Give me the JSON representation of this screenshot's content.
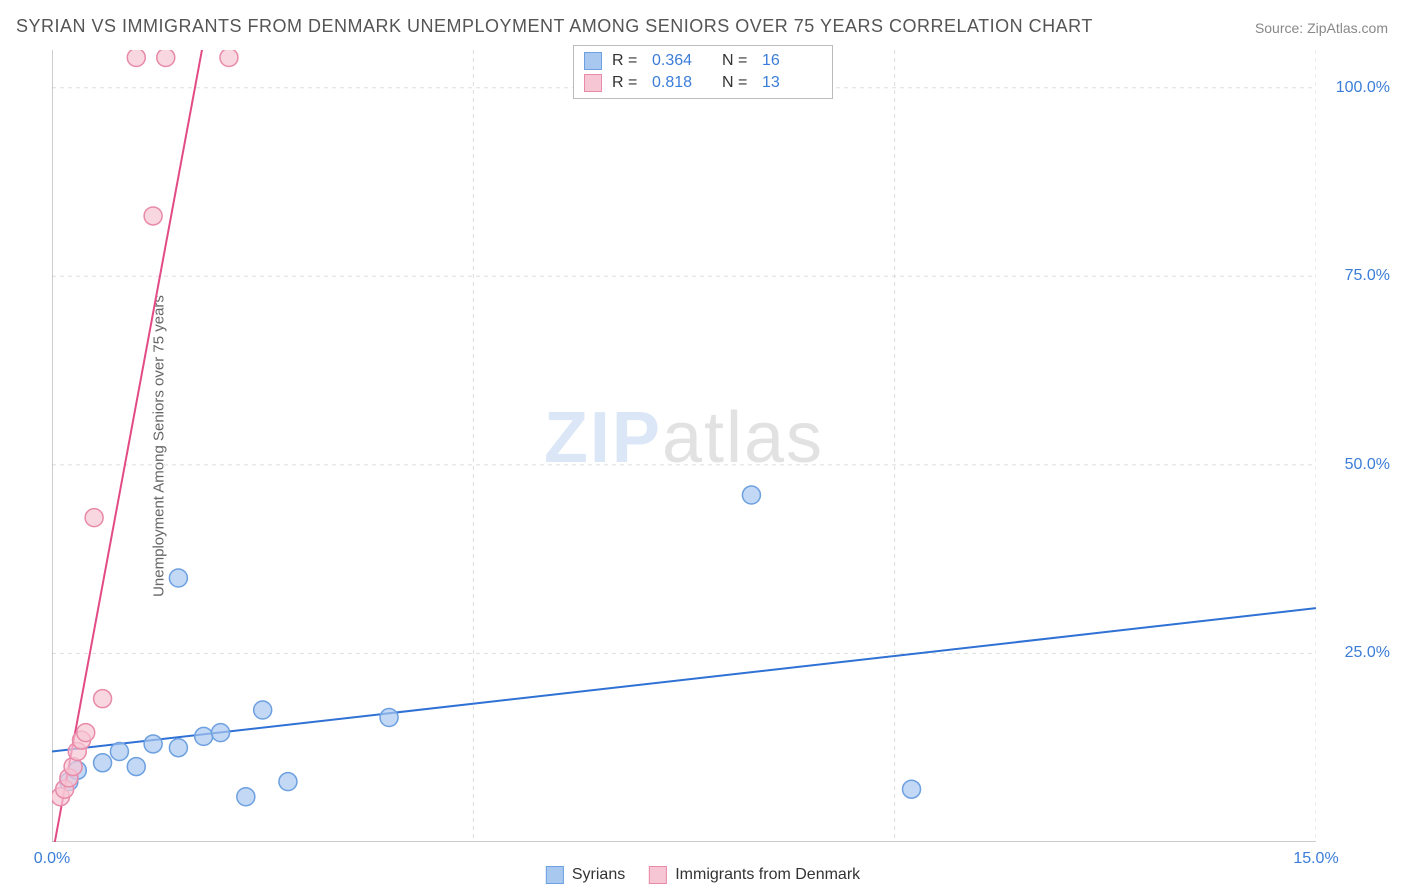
{
  "title": "SYRIAN VS IMMIGRANTS FROM DENMARK UNEMPLOYMENT AMONG SENIORS OVER 75 YEARS CORRELATION CHART",
  "source": "Source: ZipAtlas.com",
  "y_axis_label": "Unemployment Among Seniors over 75 years",
  "watermark_a": "ZIP",
  "watermark_b": "atlas",
  "chart": {
    "type": "scatter",
    "xlim": [
      0,
      15
    ],
    "ylim": [
      0,
      105
    ],
    "x_ticks": [
      0,
      5,
      10,
      15
    ],
    "x_tick_labels": [
      "0.0%",
      "",
      "",
      "15.0%"
    ],
    "y_ticks": [
      25,
      50,
      75,
      100
    ],
    "y_tick_labels": [
      "25.0%",
      "50.0%",
      "75.0%",
      "100.0%"
    ],
    "grid_color": "#dddddd",
    "grid_dash": "4,4",
    "axis_color": "#999999",
    "background_color": "#ffffff",
    "series": [
      {
        "name": "Syrians",
        "color_fill": "#a8c8f0",
        "color_stroke": "#6da0e0",
        "line_color": "#2f71d4",
        "line_width": 2,
        "marker_radius": 9,
        "marker_opacity": 0.7,
        "R": "0.364",
        "N": "16",
        "points": [
          [
            0.2,
            8.0
          ],
          [
            0.3,
            9.5
          ],
          [
            0.6,
            10.5
          ],
          [
            0.8,
            12.0
          ],
          [
            1.0,
            10.0
          ],
          [
            1.2,
            13.0
          ],
          [
            1.5,
            12.5
          ],
          [
            1.8,
            14.0
          ],
          [
            2.0,
            14.5
          ],
          [
            2.3,
            6.0
          ],
          [
            2.8,
            8.0
          ],
          [
            2.5,
            17.5
          ],
          [
            4.0,
            16.5
          ],
          [
            1.5,
            35.0
          ],
          [
            8.3,
            46.0
          ],
          [
            10.2,
            7.0
          ]
        ],
        "trend": {
          "y_at_x0": 12.0,
          "y_at_xmax": 31.0
        }
      },
      {
        "name": "Immigrants from Denmark",
        "color_fill": "#f7c6d4",
        "color_stroke": "#e88aa8",
        "line_color": "#e24b86",
        "line_width": 2,
        "marker_radius": 9,
        "marker_opacity": 0.7,
        "R": "0.818",
        "N": "13",
        "points": [
          [
            0.1,
            6.0
          ],
          [
            0.15,
            7.0
          ],
          [
            0.2,
            8.5
          ],
          [
            0.25,
            10.0
          ],
          [
            0.3,
            12.0
          ],
          [
            0.35,
            13.5
          ],
          [
            0.4,
            14.5
          ],
          [
            0.6,
            19.0
          ],
          [
            0.5,
            43.0
          ],
          [
            1.2,
            83.0
          ],
          [
            1.0,
            104.0
          ],
          [
            1.35,
            104.0
          ],
          [
            2.1,
            104.0
          ]
        ],
        "trend": {
          "y_at_x0": -2.0,
          "y_at_xmax": 900.0
        }
      }
    ]
  },
  "legend_top": [
    {
      "swatch_fill": "#a8c8f0",
      "swatch_stroke": "#6da0e0",
      "R_label": "R =",
      "R": "0.364",
      "N_label": "N =",
      "N": "16"
    },
    {
      "swatch_fill": "#f7c6d4",
      "swatch_stroke": "#e88aa8",
      "R_label": "R =",
      "R": "0.818",
      "N_label": "N =",
      "N": "13"
    }
  ],
  "legend_bottom": [
    {
      "swatch_fill": "#a8c8f0",
      "swatch_stroke": "#6da0e0",
      "label": "Syrians"
    },
    {
      "swatch_fill": "#f7c6d4",
      "swatch_stroke": "#e88aa8",
      "label": "Immigrants from Denmark"
    }
  ]
}
